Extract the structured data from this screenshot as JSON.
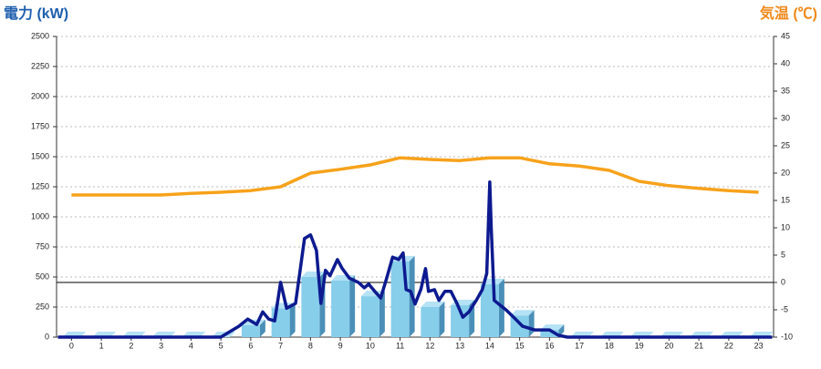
{
  "chart_data": {
    "type": "bar-line",
    "ylabel": "電力 (kW)",
    "y2label": "気温 (℃)",
    "x": [
      0,
      1,
      2,
      3,
      4,
      5,
      6,
      7,
      8,
      9,
      10,
      11,
      12,
      13,
      14,
      15,
      16,
      17,
      18,
      19,
      20,
      21,
      22,
      23
    ],
    "xlim": [
      -0.5,
      23.5
    ],
    "xticks": [
      0,
      1,
      2,
      3,
      4,
      5,
      6,
      7,
      8,
      9,
      10,
      11,
      12,
      13,
      14,
      15,
      16,
      17,
      18,
      19,
      20,
      21,
      22,
      23
    ],
    "ylim": [
      0,
      2500
    ],
    "yticks": [
      0,
      250,
      500,
      750,
      1000,
      1250,
      1500,
      1750,
      2000,
      2250,
      2500
    ],
    "y2lim": [
      -10,
      45
    ],
    "y2ticks": [
      -10,
      -5,
      0,
      5,
      10,
      15,
      20,
      25,
      30,
      35,
      40,
      45
    ],
    "grid": true,
    "hline": {
      "axis": "y2",
      "value": 0
    },
    "series": [
      {
        "type": "bar",
        "color": "#87ceeb",
        "values": [
          0,
          0,
          0,
          0,
          0,
          0,
          100,
          240,
          500,
          470,
          340,
          630,
          250,
          265,
          440,
          180,
          60,
          0,
          0,
          0,
          0,
          0,
          0,
          0
        ]
      },
      {
        "type": "line",
        "axis": "y2",
        "color": "#f7a21b",
        "values": [
          16,
          16,
          16,
          16,
          16.3,
          16.5,
          16.8,
          17.5,
          20,
          20.7,
          21.5,
          22.8,
          22.5,
          22.3,
          22.8,
          22.8,
          21.7,
          21.3,
          20.5,
          18.5,
          17.7,
          17.2,
          16.8,
          16.5
        ]
      },
      {
        "type": "line",
        "color": "#0d1a8f",
        "x": [
          -0.45,
          5,
          5.6,
          5.9,
          6.2,
          6.4,
          6.6,
          6.8,
          7.0,
          7.2,
          7.5,
          7.8,
          8.0,
          8.2,
          8.35,
          8.5,
          8.65,
          8.9,
          9.05,
          9.3,
          9.6,
          9.8,
          9.95,
          10.15,
          10.35,
          10.55,
          10.75,
          10.95,
          11.1,
          11.2,
          11.35,
          11.5,
          11.7,
          11.85,
          11.95,
          12.15,
          12.3,
          12.5,
          12.7,
          12.9,
          13.1,
          13.3,
          13.55,
          13.75,
          13.9,
          14.0,
          14.05,
          14.15,
          14.35,
          14.55,
          14.8,
          15.1,
          15.5,
          16.0,
          16.3,
          16.6,
          23.45
        ],
        "values": [
          0,
          0,
          90,
          150,
          105,
          210,
          150,
          135,
          455,
          240,
          280,
          820,
          850,
          720,
          280,
          555,
          510,
          645,
          575,
          490,
          455,
          410,
          440,
          380,
          325,
          490,
          665,
          645,
          700,
          395,
          380,
          275,
          400,
          570,
          380,
          395,
          305,
          380,
          380,
          280,
          165,
          210,
          305,
          395,
          530,
          1290,
          910,
          305,
          265,
          225,
          165,
          90,
          60,
          60,
          15,
          0,
          0
        ]
      }
    ]
  }
}
